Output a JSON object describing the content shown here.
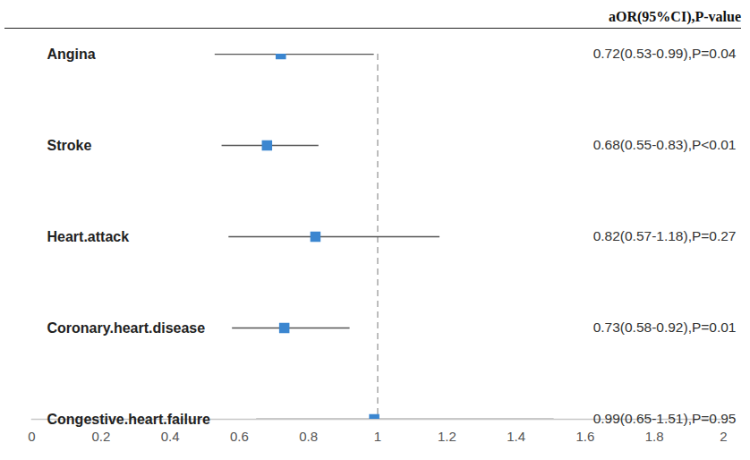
{
  "chart_data": {
    "type": "forest",
    "column_header": "aOR(95%CI),P-value",
    "categories": [
      "Angina",
      "Stroke",
      "Heart.attack",
      "Coronary.heart.disease",
      "Congestive.heart.failure"
    ],
    "values": [
      0.72,
      0.68,
      0.82,
      0.73,
      0.99
    ],
    "ci_lower": [
      0.53,
      0.55,
      0.57,
      0.58,
      0.65
    ],
    "ci_upper": [
      0.99,
      0.83,
      1.18,
      0.92,
      1.51
    ],
    "value_labels": [
      "0.72(0.53-0.99),P=0.04",
      "0.68(0.55-0.83),P<0.01",
      "0.82(0.57-1.18),P=0.27",
      "0.73(0.58-0.92),P=0.01",
      "0.99(0.65-1.51),P=0.95"
    ],
    "data_labels": true,
    "reference_line": 1,
    "color": "#3b86d0",
    "marker": "square",
    "xlim": [
      0,
      2
    ],
    "xticks": [
      0,
      0.2,
      0.4,
      0.6,
      0.8,
      1,
      1.2,
      1.4,
      1.6,
      1.8,
      2
    ],
    "grid": false
  }
}
